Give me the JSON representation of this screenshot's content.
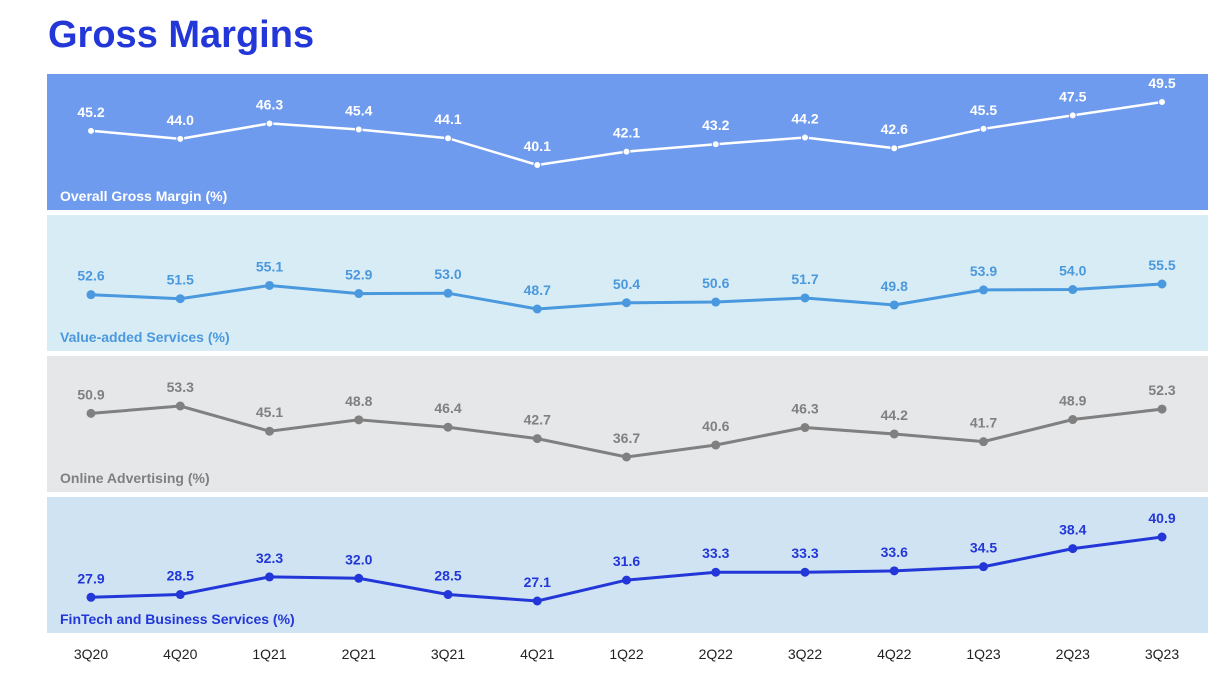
{
  "title": "Gross Margins",
  "chart_data": {
    "type": "line",
    "categories": [
      "3Q20",
      "4Q20",
      "1Q21",
      "2Q21",
      "3Q21",
      "4Q21",
      "1Q22",
      "2Q22",
      "3Q22",
      "4Q22",
      "1Q23",
      "2Q23",
      "3Q23"
    ],
    "series": [
      {
        "name": "Overall Gross Margin (%)",
        "values": [
          45.2,
          44.0,
          46.3,
          45.4,
          44.1,
          40.1,
          42.1,
          43.2,
          44.2,
          42.6,
          45.5,
          47.5,
          49.5
        ],
        "color": "#ffffff",
        "panel_bg": "#6f9bef",
        "label_color": "#ffffff",
        "value_color": "#ffffff"
      },
      {
        "name": "Value-added Services (%)",
        "values": [
          52.6,
          51.5,
          55.1,
          52.9,
          53.0,
          48.7,
          50.4,
          50.6,
          51.7,
          49.8,
          53.9,
          54.0,
          55.5
        ],
        "color": "#4a98de",
        "panel_bg": "#d8ecf5",
        "label_color": "#4a98de",
        "value_color": "#4a98de"
      },
      {
        "name": "Online Advertising (%)",
        "values": [
          50.9,
          53.3,
          45.1,
          48.8,
          46.4,
          42.7,
          36.7,
          40.6,
          46.3,
          44.2,
          41.7,
          48.9,
          52.3
        ],
        "color": "#808080",
        "panel_bg": "#e5e7e9",
        "label_color": "#808080",
        "value_color": "#808080"
      },
      {
        "name": "FinTech and Business Services (%)",
        "values": [
          27.9,
          28.5,
          32.3,
          32.0,
          28.5,
          27.1,
          31.6,
          33.3,
          33.3,
          33.6,
          34.5,
          38.4,
          40.9
        ],
        "color": "#2337d8",
        "panel_bg": "#cfe3f3",
        "label_color": "#2337d8",
        "value_color": "#2337d8"
      }
    ]
  }
}
